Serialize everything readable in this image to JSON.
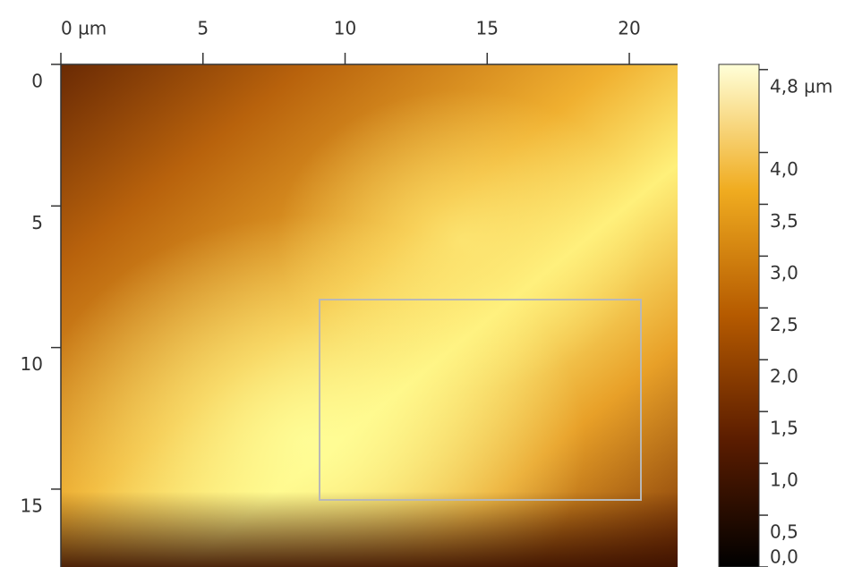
{
  "chart_data": {
    "type": "image",
    "xlim": [
      0,
      21.7
    ],
    "ylim": [
      0,
      17.75
    ],
    "xticks": [
      {
        "value": 0,
        "label": "0 µm"
      },
      5,
      10,
      15,
      20
    ],
    "yticks": [
      0,
      5,
      10,
      15
    ],
    "clim": [
      0,
      4.85
    ],
    "cticks": [
      {
        "value": 4.8,
        "label": "4,8 µm"
      },
      {
        "value": 4.0,
        "label": "4,0"
      },
      {
        "value": 3.5,
        "label": "3,5"
      },
      {
        "value": 3.0,
        "label": "3,0"
      },
      {
        "value": 2.5,
        "label": "2,5"
      },
      {
        "value": 2.0,
        "label": "2,0"
      },
      {
        "value": 1.5,
        "label": "1,5"
      },
      {
        "value": 1.0,
        "label": "1,0"
      },
      {
        "value": 0.5,
        "label": "0,5"
      },
      {
        "value": 0.0,
        "label": "0,0"
      }
    ]
  }
}
